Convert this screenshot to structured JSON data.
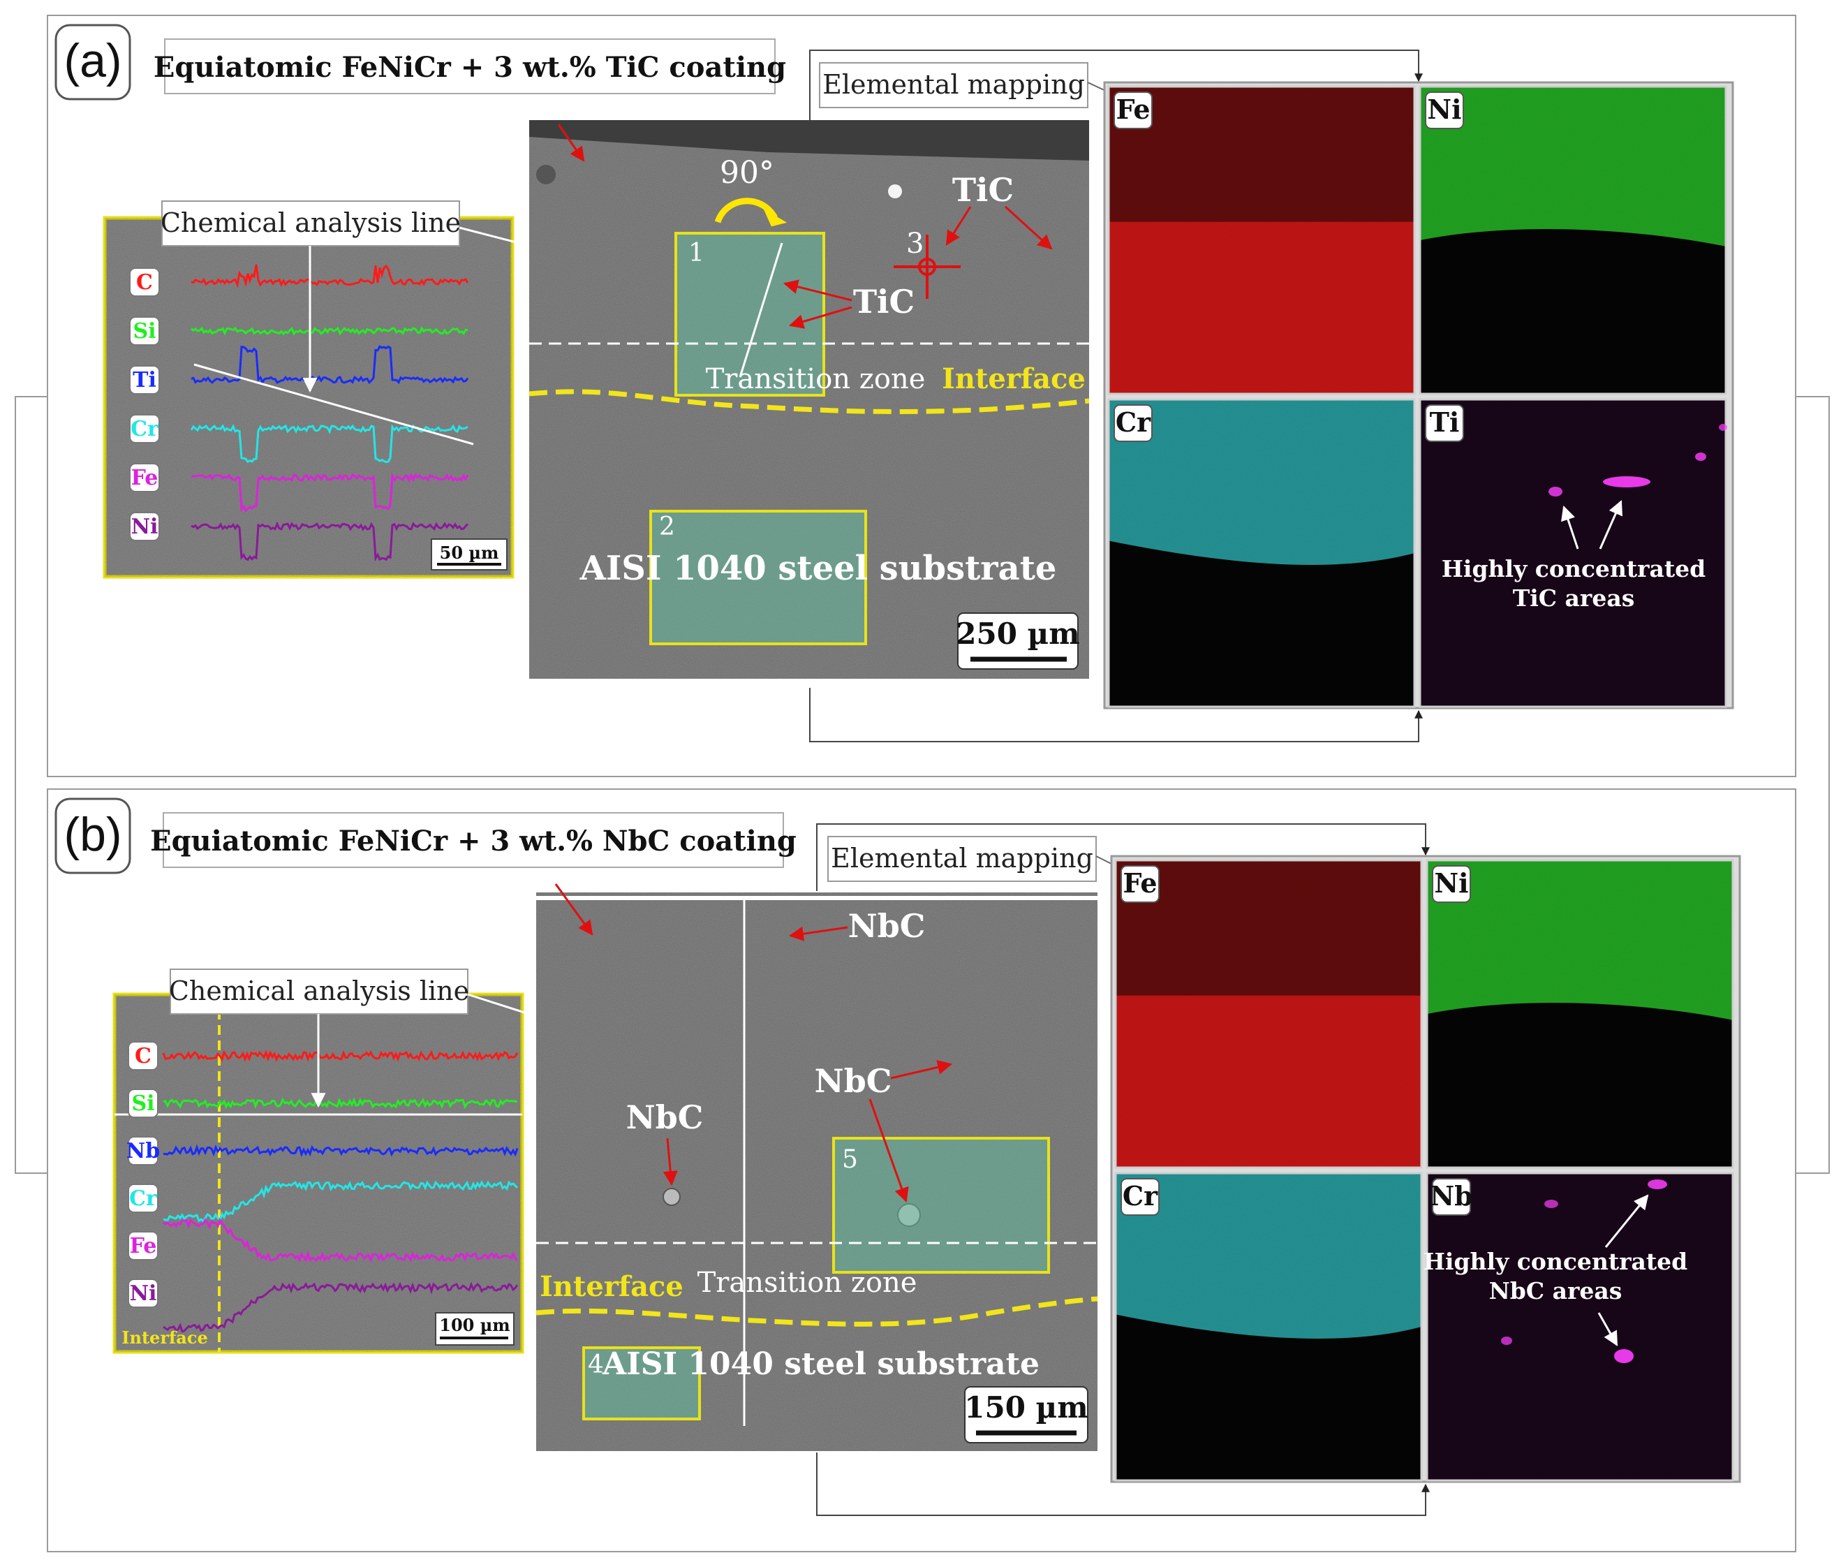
{
  "panels": [
    {
      "letter": "(a)",
      "title": "Equiatomic FeNiCr + 3 wt.% TiC coating",
      "mapping_label": "Elemental mapping",
      "analysis_line_label": "Chemical analysis line",
      "line_scan": {
        "elements": [
          "C",
          "Si",
          "Ti",
          "Cr",
          "Fe",
          "Ni"
        ],
        "element_colors": [
          "#ff1a1a",
          "#22ee22",
          "#1a2bff",
          "#22e6e6",
          "#dd22dd",
          "#8a1a9a"
        ],
        "scale_bar": "50 µm"
      },
      "sem": {
        "angle_label": "90°",
        "carbide_labels": [
          "TiC",
          "TiC"
        ],
        "region_numbers": [
          "1",
          "2",
          "3"
        ],
        "transition_label": "Transition zone",
        "interface_label": "Interface",
        "substrate_label": "AISI 1040 steel substrate",
        "scale_bar": "250 µm"
      },
      "maps": [
        {
          "element": "Fe",
          "color": "#d81818"
        },
        {
          "element": "Ni",
          "color": "#26b826"
        },
        {
          "element": "Cr",
          "color": "#2aa6a8"
        },
        {
          "element": "Ti",
          "color": "#b01ab0"
        }
      ],
      "map_note_line1": "Highly concentrated",
      "map_note_line2": "TiC areas"
    },
    {
      "letter": "(b)",
      "title": "Equiatomic FeNiCr + 3 wt.% NbC coating",
      "mapping_label": "Elemental mapping",
      "analysis_line_label": "Chemical analysis line",
      "line_scan": {
        "elements": [
          "C",
          "Si",
          "Nb",
          "Cr",
          "Fe",
          "Ni"
        ],
        "element_colors": [
          "#ff1a1a",
          "#22ee22",
          "#1a2bff",
          "#22e6e6",
          "#dd22dd",
          "#8a1a9a"
        ],
        "interface_label": "Interface",
        "scale_bar": "100 µm"
      },
      "sem": {
        "carbide_labels": [
          "NbC",
          "NbC",
          "NbC"
        ],
        "region_numbers": [
          "4",
          "5"
        ],
        "transition_label": "Transition zone",
        "interface_label": "Interface",
        "substrate_label": "AISI 1040 steel substrate",
        "scale_bar": "150 µm"
      },
      "maps": [
        {
          "element": "Fe",
          "color": "#d81818"
        },
        {
          "element": "Ni",
          "color": "#26b826"
        },
        {
          "element": "Cr",
          "color": "#2aa6a8"
        },
        {
          "element": "Nb",
          "color": "#b01ab0"
        }
      ],
      "map_note_line1": "Highly concentrated",
      "map_note_line2": "NbC areas"
    }
  ]
}
